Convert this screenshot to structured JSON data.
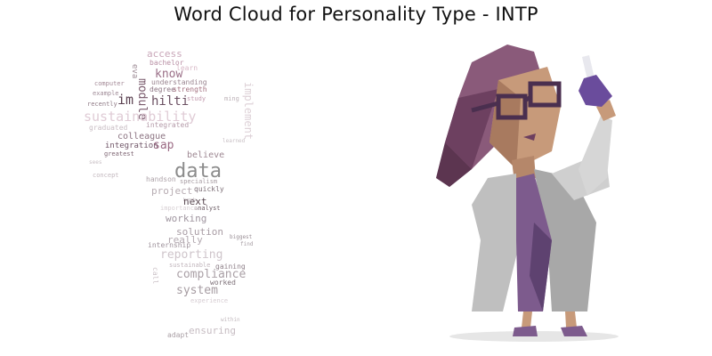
{
  "title": "Word Cloud for Personality Type - INTP",
  "cloud": {
    "words": [
      {
        "text": "access",
        "color": "#c9a7b9"
      },
      {
        "text": "bachelor",
        "color": "#b98fa4"
      },
      {
        "text": "learn",
        "color": "#d8b8c7"
      },
      {
        "text": "know",
        "color": "#9a6f87"
      },
      {
        "text": "understanding",
        "color": "#9a8590"
      },
      {
        "text": "computer",
        "color": "#a48a97"
      },
      {
        "text": "degree",
        "color": "#8e7684"
      },
      {
        "text": "strength",
        "color": "#a3707f"
      },
      {
        "text": "example",
        "color": "#9f8a96"
      },
      {
        "text": "module",
        "color": "#7a5b6d"
      },
      {
        "text": "im",
        "color": "#5a4050"
      },
      {
        "text": "hilti",
        "color": "#6b5062"
      },
      {
        "text": "study",
        "color": "#c29aae"
      },
      {
        "text": "recently",
        "color": "#8f7a86"
      },
      {
        "text": "sustainability",
        "color": "#e0ccd6"
      },
      {
        "text": "implement",
        "color": "#ddd0d6"
      },
      {
        "text": "graduated",
        "color": "#c8bcc3"
      },
      {
        "text": "integrated",
        "color": "#b49aa8"
      },
      {
        "text": "colleague",
        "color": "#8c7482"
      },
      {
        "text": "integration",
        "color": "#6e5466"
      },
      {
        "text": "sap",
        "color": "#9b6a84"
      },
      {
        "text": "greatest",
        "color": "#7d6472"
      },
      {
        "text": "believe",
        "color": "#9e8893"
      },
      {
        "text": "data",
        "color": "#8c8c8c"
      },
      {
        "text": "concept",
        "color": "#c3b8be"
      },
      {
        "text": "handson",
        "color": "#aea3a9"
      },
      {
        "text": "specialism",
        "color": "#a79ca2"
      },
      {
        "text": "project",
        "color": "#b7acb2"
      },
      {
        "text": "quickly",
        "color": "#7e7078"
      },
      {
        "text": "next",
        "color": "#57464f"
      },
      {
        "text": "analyst",
        "color": "#6a5a63"
      },
      {
        "text": "working",
        "color": "#a096a0"
      },
      {
        "text": "solution",
        "color": "#a89ca4"
      },
      {
        "text": "really",
        "color": "#b3a9b0"
      },
      {
        "text": "internship",
        "color": "#9d919a"
      },
      {
        "text": "reporting",
        "color": "#cfc5cb"
      },
      {
        "text": "sustainable",
        "color": "#c0b4bb"
      },
      {
        "text": "gaining",
        "color": "#8f818a"
      },
      {
        "text": "compliance",
        "color": "#aaa0a6"
      },
      {
        "text": "worked",
        "color": "#7d7078"
      },
      {
        "text": "system",
        "color": "#a69ca2"
      },
      {
        "text": "experience",
        "color": "#d6ccd2"
      },
      {
        "text": "ensuring",
        "color": "#c7bdc3"
      },
      {
        "text": "adapt",
        "color": "#a89ea4"
      },
      {
        "text": "within",
        "color": "#c2b9be"
      },
      {
        "text": "learned",
        "color": "#c9c0c5"
      },
      {
        "text": "call",
        "color": "#ccc3c8"
      },
      {
        "text": "biggest",
        "color": "#9a8f96"
      },
      {
        "text": "find",
        "color": "#a79da3"
      },
      {
        "text": "hands",
        "color": "#b5abb1"
      },
      {
        "text": "importance",
        "color": "#d8d0d4"
      },
      {
        "text": "eva",
        "color": "#9c8a94"
      },
      {
        "text": "ming",
        "color": "#bdb2b8"
      },
      {
        "text": "sees",
        "color": "#c8bfc4"
      }
    ]
  },
  "colors": {
    "hair": "#8a5a7a",
    "hair_dark": "#5c3550",
    "skin": "#c79a7a",
    "coat": "#bfbfbf",
    "dress": "#7d5b8d",
    "glasses": "#4a2f4f",
    "flask": "#6a4c9c"
  }
}
